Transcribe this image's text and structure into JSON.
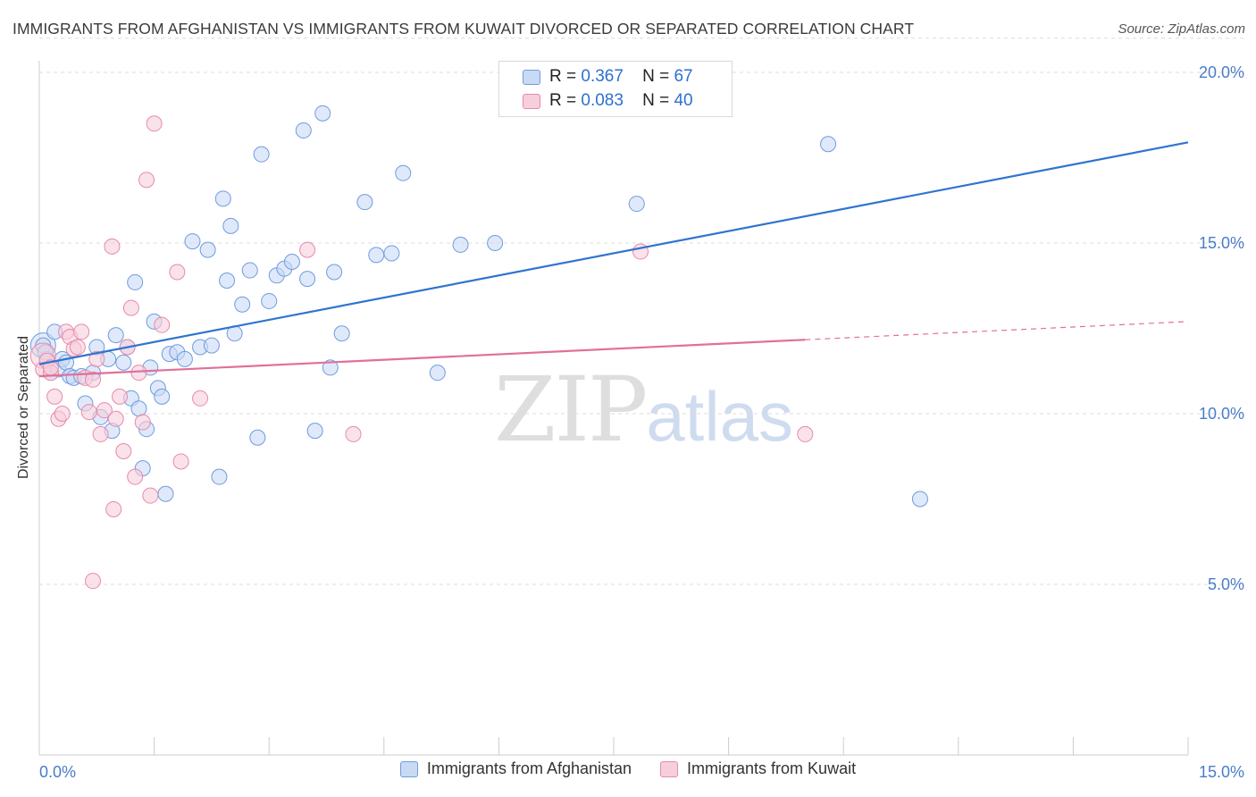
{
  "title": "IMMIGRANTS FROM AFGHANISTAN VS IMMIGRANTS FROM KUWAIT DIVORCED OR SEPARATED CORRELATION CHART",
  "source": "Source: ZipAtlas.com",
  "watermark": {
    "zip": "ZIP",
    "atlas": "atlas"
  },
  "legend_top": [
    {
      "r_label": "R =",
      "r_value": "0.367",
      "n_label": "N =",
      "n_value": "67"
    },
    {
      "r_label": "R =",
      "r_value": "0.083",
      "n_label": "N =",
      "n_value": "40"
    }
  ],
  "chart_data": {
    "type": "scatter",
    "title": "IMMIGRANTS FROM AFGHANISTAN VS IMMIGRANTS FROM KUWAIT DIVORCED OR SEPARATED CORRELATION CHART",
    "xlabel": "",
    "ylabel": "Divorced or Separated",
    "xlim": [
      0,
      15
    ],
    "ylim": [
      0,
      21
    ],
    "x_tick_labels": [
      "0.0%",
      "15.0%"
    ],
    "y_ticks": [
      5,
      10,
      15,
      20
    ],
    "y_tick_labels": [
      "5.0%",
      "10.0%",
      "15.0%",
      "20.0%"
    ],
    "grid": true,
    "legend_position": "bottom",
    "series": [
      {
        "name": "Immigrants from Afghanistan",
        "color": "#6f9be0",
        "fill": "#c9daf5",
        "trend": {
          "x": [
            0,
            15
          ],
          "y": [
            11.45,
            17.95
          ],
          "dashed_from": null
        },
        "points": [
          [
            0.05,
            12.0
          ],
          [
            0.1,
            11.6
          ],
          [
            0.15,
            11.2
          ],
          [
            0.2,
            12.4
          ],
          [
            0.25,
            11.3
          ],
          [
            0.3,
            11.6
          ],
          [
            0.35,
            11.5
          ],
          [
            0.4,
            11.1
          ],
          [
            0.45,
            11.05
          ],
          [
            0.55,
            11.1
          ],
          [
            0.6,
            10.3
          ],
          [
            0.7,
            11.2
          ],
          [
            0.75,
            11.95
          ],
          [
            0.8,
            9.9
          ],
          [
            0.9,
            11.6
          ],
          [
            0.95,
            9.5
          ],
          [
            1.0,
            12.3
          ],
          [
            1.1,
            11.5
          ],
          [
            1.15,
            11.95
          ],
          [
            1.2,
            10.45
          ],
          [
            1.25,
            13.85
          ],
          [
            1.3,
            10.15
          ],
          [
            1.35,
            8.4
          ],
          [
            1.4,
            9.55
          ],
          [
            1.45,
            11.35
          ],
          [
            1.5,
            12.7
          ],
          [
            1.55,
            10.75
          ],
          [
            1.6,
            10.5
          ],
          [
            1.65,
            7.65
          ],
          [
            1.7,
            11.75
          ],
          [
            1.8,
            11.8
          ],
          [
            1.9,
            11.6
          ],
          [
            2.0,
            15.05
          ],
          [
            2.1,
            11.95
          ],
          [
            2.2,
            14.8
          ],
          [
            2.25,
            12.0
          ],
          [
            2.35,
            8.15
          ],
          [
            2.4,
            16.3
          ],
          [
            2.45,
            13.9
          ],
          [
            2.5,
            15.5
          ],
          [
            2.55,
            12.35
          ],
          [
            2.65,
            13.2
          ],
          [
            2.75,
            14.2
          ],
          [
            2.85,
            9.3
          ],
          [
            2.9,
            17.6
          ],
          [
            3.0,
            13.3
          ],
          [
            3.1,
            14.05
          ],
          [
            3.2,
            14.25
          ],
          [
            3.3,
            14.45
          ],
          [
            3.45,
            18.3
          ],
          [
            3.5,
            13.95
          ],
          [
            3.6,
            9.5
          ],
          [
            3.7,
            18.8
          ],
          [
            3.8,
            11.35
          ],
          [
            3.85,
            14.15
          ],
          [
            3.95,
            12.35
          ],
          [
            4.25,
            16.2
          ],
          [
            4.4,
            14.65
          ],
          [
            4.6,
            14.7
          ],
          [
            4.75,
            17.05
          ],
          [
            5.2,
            11.2
          ],
          [
            5.5,
            14.95
          ],
          [
            5.95,
            15.0
          ],
          [
            7.8,
            16.15
          ],
          [
            10.3,
            17.9
          ],
          [
            11.5,
            7.5
          ],
          [
            0.08,
            11.8
          ]
        ],
        "big_points": [
          [
            0.05,
            12.0
          ]
        ]
      },
      {
        "name": "Immigrants from Kuwait",
        "color": "#e88aa8",
        "fill": "#f7cfdc",
        "trend": {
          "x": [
            0,
            15
          ],
          "y": [
            11.1,
            12.7
          ],
          "dashed_from": 10.0
        },
        "points": [
          [
            0.05,
            11.3
          ],
          [
            0.1,
            11.55
          ],
          [
            0.15,
            11.2
          ],
          [
            0.2,
            10.5
          ],
          [
            0.25,
            9.85
          ],
          [
            0.3,
            10.0
          ],
          [
            0.35,
            12.4
          ],
          [
            0.4,
            12.25
          ],
          [
            0.45,
            11.9
          ],
          [
            0.5,
            11.95
          ],
          [
            0.55,
            12.4
          ],
          [
            0.6,
            11.05
          ],
          [
            0.65,
            10.05
          ],
          [
            0.7,
            11.0
          ],
          [
            0.75,
            11.6
          ],
          [
            0.8,
            9.4
          ],
          [
            0.85,
            10.1
          ],
          [
            0.95,
            14.9
          ],
          [
            0.97,
            7.2
          ],
          [
            1.0,
            9.85
          ],
          [
            1.05,
            10.5
          ],
          [
            1.1,
            8.9
          ],
          [
            1.15,
            11.95
          ],
          [
            1.2,
            13.1
          ],
          [
            1.25,
            8.15
          ],
          [
            1.3,
            11.2
          ],
          [
            1.35,
            9.75
          ],
          [
            1.4,
            16.85
          ],
          [
            1.45,
            7.6
          ],
          [
            1.5,
            18.5
          ],
          [
            1.6,
            12.6
          ],
          [
            1.8,
            14.15
          ],
          [
            1.85,
            8.6
          ],
          [
            2.1,
            10.45
          ],
          [
            3.5,
            14.8
          ],
          [
            4.1,
            9.4
          ],
          [
            7.85,
            14.75
          ],
          [
            10.0,
            9.4
          ],
          [
            0.7,
            5.1
          ],
          [
            0.15,
            11.35
          ]
        ],
        "big_points": [
          [
            0.05,
            11.7
          ]
        ]
      }
    ]
  }
}
